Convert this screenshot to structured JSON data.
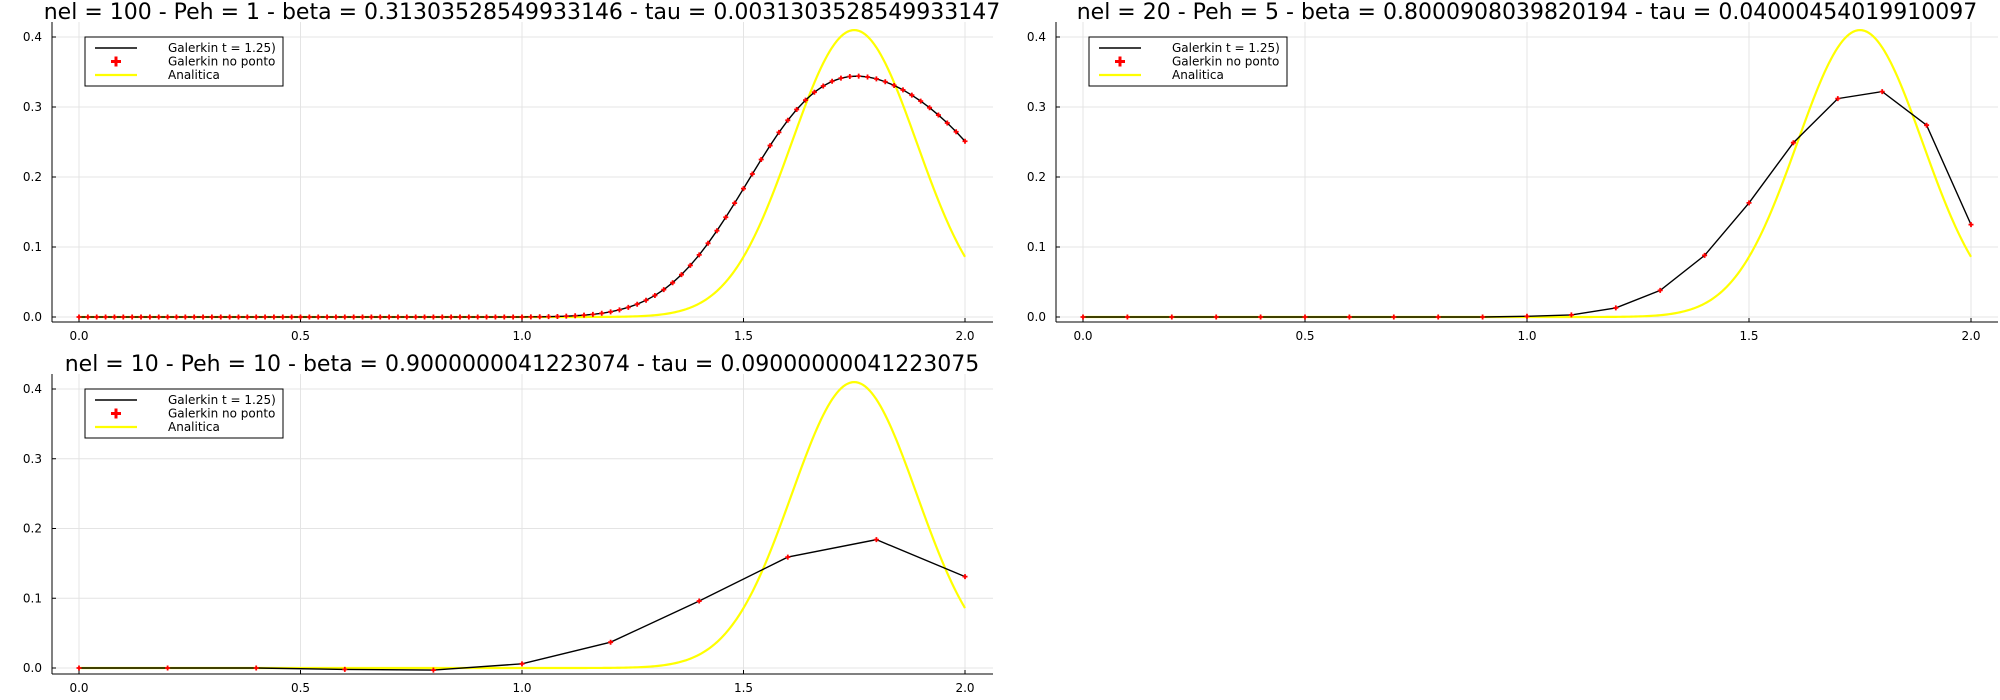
{
  "chart_data": [
    {
      "type": "line",
      "title": "nel = 100 - Peh = 1 - beta = 0.31303528549933146 - tau = 0.0031303528549933147",
      "xlim": [
        0,
        2
      ],
      "ylim": [
        0,
        0.4
      ],
      "xticks": [
        "0.0",
        "0.5",
        "1.0",
        "1.5",
        "2.0"
      ],
      "yticks": [
        "0.0",
        "0.1",
        "0.2",
        "0.3",
        "0.4"
      ],
      "grid": true,
      "legend_position": "top-left",
      "series": [
        {
          "name": "Galerkin t = 1.25)",
          "color": "#000000",
          "style": "line",
          "x": [
            0,
            0.02,
            0.04,
            0.06,
            0.08,
            0.1,
            0.12,
            0.14,
            0.16,
            0.18,
            0.2,
            0.22,
            0.24,
            0.26,
            0.28,
            0.3,
            0.32,
            0.34,
            0.36,
            0.38,
            0.4,
            0.42,
            0.44,
            0.46,
            0.48,
            0.5,
            0.52,
            0.54,
            0.56,
            0.58,
            0.6,
            0.62,
            0.64,
            0.66,
            0.68,
            0.7,
            0.72,
            0.74,
            0.76,
            0.78,
            0.8,
            0.82,
            0.84,
            0.86,
            0.88,
            0.9,
            0.92,
            0.94,
            0.96,
            0.98,
            1.0,
            1.02,
            1.04,
            1.06,
            1.08,
            1.1,
            1.12,
            1.14,
            1.16,
            1.18,
            1.2,
            1.22,
            1.24,
            1.26,
            1.28,
            1.3,
            1.32,
            1.34,
            1.36,
            1.38,
            1.4,
            1.42,
            1.44,
            1.46,
            1.48,
            1.5,
            1.52,
            1.54,
            1.56,
            1.58,
            1.6,
            1.62,
            1.64,
            1.66,
            1.68,
            1.7,
            1.72,
            1.74,
            1.76,
            1.78,
            1.8,
            1.82,
            1.84,
            1.86,
            1.88,
            1.9,
            1.92,
            1.94,
            1.96,
            1.98,
            2.0
          ],
          "y": [
            0,
            0,
            0,
            0,
            0,
            0,
            0,
            0,
            0,
            0,
            0,
            0,
            0,
            0,
            0,
            0,
            0,
            0,
            0,
            0,
            0,
            0,
            0,
            0,
            0,
            0,
            0,
            0,
            0,
            0,
            0,
            0,
            0,
            0,
            0,
            0,
            0,
            0,
            0,
            0,
            0,
            0,
            0,
            0,
            0,
            0,
            0,
            0,
            0,
            0,
            0,
            0.0002,
            0.0003,
            0.0005,
            0.0008,
            0.0012,
            0.0018,
            0.0026,
            0.0038,
            0.0053,
            0.0074,
            0.0102,
            0.0138,
            0.0183,
            0.0239,
            0.0308,
            0.0391,
            0.049,
            0.0605,
            0.0738,
            0.0887,
            0.1053,
            0.1233,
            0.1425,
            0.1627,
            0.1834,
            0.2043,
            0.225,
            0.2449,
            0.2637,
            0.281,
            0.2964,
            0.3098,
            0.3211,
            0.33,
            0.3367,
            0.3412,
            0.3436,
            0.3441,
            0.3429,
            0.3402,
            0.3361,
            0.3308,
            0.3244,
            0.3169,
            0.3084,
            0.299,
            0.2885,
            0.2771,
            0.2646,
            0.2511
          ]
        },
        {
          "name": "Galerkin no ponto",
          "color": "#ff0000",
          "style": "markers"
        },
        {
          "name": "Analitica",
          "color": "#ffff00",
          "style": "line"
        }
      ]
    },
    {
      "type": "line",
      "title": "nel = 20 - Peh = 5 - beta = 0.8000908039820194 - tau = 0.04000454019910097",
      "xlim": [
        0,
        2
      ],
      "ylim": [
        0,
        0.4
      ],
      "xticks": [
        "0.0",
        "0.5",
        "1.0",
        "1.5",
        "2.0"
      ],
      "yticks": [
        "0.0",
        "0.1",
        "0.2",
        "0.3",
        "0.4"
      ],
      "grid": true,
      "legend_position": "top-left",
      "series": [
        {
          "name": "Galerkin t = 1.25)",
          "color": "#000000",
          "style": "line",
          "x": [
            0,
            0.1,
            0.2,
            0.3,
            0.4,
            0.5,
            0.6,
            0.7,
            0.8,
            0.9,
            1.0,
            1.1,
            1.2,
            1.3,
            1.4,
            1.5,
            1.6,
            1.7,
            1.8,
            1.9,
            2.0
          ],
          "y": [
            0,
            0,
            0,
            0,
            0,
            0,
            0,
            0,
            0,
            0,
            0.001,
            0.003,
            0.013,
            0.038,
            0.088,
            0.163,
            0.249,
            0.312,
            0.322,
            0.274,
            0.132
          ]
        },
        {
          "name": "Galerkin no ponto",
          "color": "#ff0000",
          "style": "markers"
        },
        {
          "name": "Analitica",
          "color": "#ffff00",
          "style": "line"
        }
      ]
    },
    {
      "type": "line",
      "title": "nel = 10 - Peh = 10 - beta = 0.9000000041223074 - tau = 0.09000000041223075",
      "xlim": [
        0,
        2
      ],
      "ylim": [
        0,
        0.4
      ],
      "xticks": [
        "0.0",
        "0.5",
        "1.0",
        "1.5",
        "2.0"
      ],
      "yticks": [
        "0.0",
        "0.1",
        "0.2",
        "0.3",
        "0.4"
      ],
      "grid": true,
      "legend_position": "top-left",
      "series": [
        {
          "name": "Galerkin t = 1.25)",
          "color": "#000000",
          "style": "line",
          "x": [
            0,
            0.2,
            0.4,
            0.6,
            0.8,
            1.0,
            1.2,
            1.4,
            1.6,
            1.8,
            2.0
          ],
          "y": [
            0,
            0,
            0,
            -0.002,
            -0.003,
            0.006,
            0.037,
            0.096,
            0.159,
            0.184,
            0.131
          ]
        },
        {
          "name": "Galerkin no ponto",
          "color": "#ff0000",
          "style": "markers"
        },
        {
          "name": "Analitica",
          "color": "#ffff00",
          "style": "line"
        }
      ]
    }
  ]
}
